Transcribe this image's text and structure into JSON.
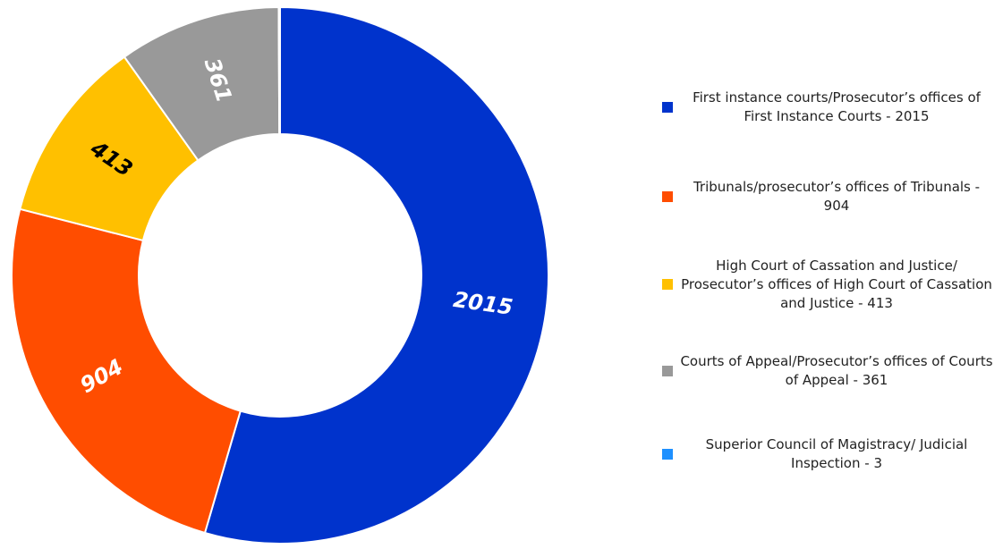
{
  "chart_data": {
    "type": "donut",
    "categories": [
      "First instance courts/Prosecutor’s offices of First Instance Courts - 2015",
      "Tribunals/prosecutor’s offices of Tribunals - 904",
      "High Court of Cassation and Justice/ Prosecutor’s offices of High Court of Cassation and Justice - 413",
      "Courts of Appeal/Prosecutor’s offices of Courts of Appeal - 361",
      "Superior Council of Magistracy/ Judicial Inspection - 3"
    ],
    "values": [
      2015,
      904,
      413,
      361,
      3
    ],
    "colors": [
      "#0033cc",
      "#ff4d00",
      "#ffc000",
      "#999999",
      "#1e90ff"
    ],
    "label_colors": [
      "#ffffff",
      "#ffffff",
      "#000000",
      "#ffffff",
      "#ffffff"
    ],
    "legend": "right"
  }
}
